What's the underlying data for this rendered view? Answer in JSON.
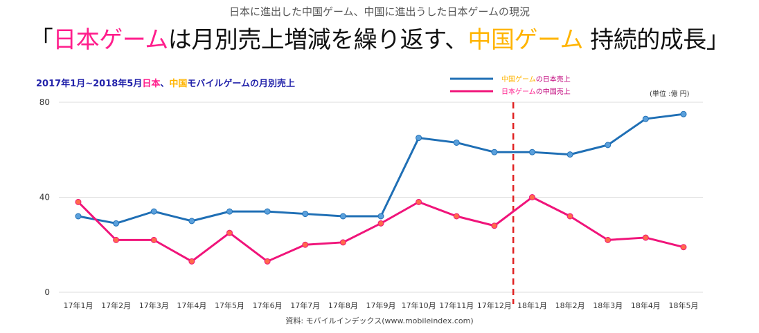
{
  "header": {
    "subtitle": "日本に進出した中国ゲーム、中国に進出うした日本ゲームの現況",
    "headline_parts": [
      {
        "text": "「",
        "color": "#111111"
      },
      {
        "text": "日本ゲーム",
        "color": "#ff1e8c"
      },
      {
        "text": "は月別売上増減を繰り返す、",
        "color": "#111111"
      },
      {
        "text": "中国ゲーム",
        "color": "#ffb400"
      },
      {
        "text": " 持続的成長」",
        "color": "#111111"
      }
    ]
  },
  "chart_title_parts": [
    {
      "text": "2017年1月~2018年5月",
      "color": "#2222aa"
    },
    {
      "text": "日本",
      "color": "#ff1e8c"
    },
    {
      "text": "、",
      "color": "#2222aa"
    },
    {
      "text": "中国",
      "color": "#ffb400"
    },
    {
      "text": "モバイルゲームの月別売上",
      "color": "#2222aa"
    }
  ],
  "unit_label": "(単位 :億 円)",
  "source": "資料:  モバイルインデックス(www.mobileindex.com)",
  "colors": {
    "china_series": "#1f6fb5",
    "japan_series": "#f0147a",
    "marker_line": "#e02020",
    "grid": "#dddddd"
  },
  "chart_data": {
    "type": "line",
    "categories": [
      "17年1月",
      "17年2月",
      "17年3月",
      "17年4月",
      "17年5月",
      "17年6月",
      "17年7月",
      "17年8月",
      "17年9月",
      "17年10月",
      "17年11月",
      "17年12月",
      "18年1月",
      "18年2月",
      "18年3月",
      "18年4月",
      "18年5月"
    ],
    "ylim": [
      0,
      80
    ],
    "yticks": [
      0,
      40,
      80
    ],
    "grid": true,
    "legend_position": "top-right",
    "vertical_marker_after": "17年12月",
    "series": [
      {
        "name_parts": [
          {
            "text": "中国ゲーム",
            "color": "#ffb400"
          },
          {
            "text": "の日本売上",
            "color": "#c0007a"
          }
        ],
        "color": "#1f6fb5",
        "marker_fill": "#5aa0dc",
        "values": [
          32,
          29,
          34,
          30,
          34,
          34,
          33,
          32,
          32,
          65,
          63,
          59,
          59,
          58,
          62,
          73,
          75
        ]
      },
      {
        "name_parts": [
          {
            "text": "日本ゲーム",
            "color": "#ff1e8c"
          },
          {
            "text": "の中国売上",
            "color": "#c0007a"
          }
        ],
        "color": "#f0147a",
        "marker_fill": "#ff6a4a",
        "values": [
          38,
          22,
          22,
          13,
          25,
          13,
          20,
          21,
          29,
          38,
          32,
          28,
          40,
          32,
          22,
          23,
          19
        ]
      }
    ]
  }
}
